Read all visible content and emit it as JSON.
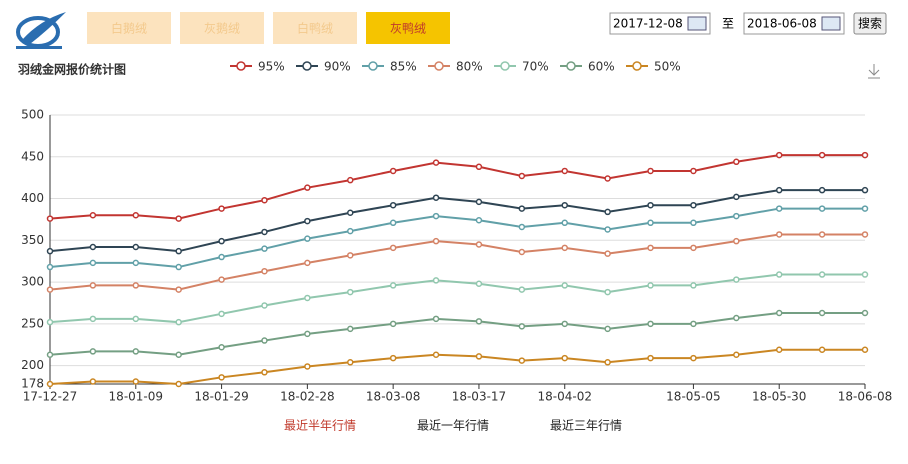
{
  "header": {
    "tabs": [
      "白鹅绒",
      "灰鹅绒",
      "白鸭绒",
      "灰鸭绒"
    ],
    "active_tab": 3,
    "date_from": "2017-12-08",
    "to_label": "至",
    "date_to": "2018-06-08",
    "search": "搜索"
  },
  "chart_data": {
    "type": "line",
    "title": "羽绒金网报价统计图",
    "categories": [
      "17-12-27",
      null,
      "18-01-09",
      null,
      "18-01-29",
      null,
      "18-02-28",
      null,
      "18-03-08",
      null,
      "18-03-17",
      null,
      "18-04-02",
      null,
      null,
      "18-05-05",
      null,
      "18-05-30",
      null,
      "18-06-08"
    ],
    "series": [
      {
        "name": "95%",
        "color": "#c23531",
        "values": [
          376,
          380,
          380,
          376,
          388,
          398,
          413,
          422,
          433,
          443,
          438,
          427,
          433,
          424,
          433,
          433,
          444,
          452,
          452,
          452
        ]
      },
      {
        "name": "90%",
        "color": "#2f4554",
        "values": [
          337,
          342,
          342,
          337,
          349,
          360,
          373,
          383,
          392,
          401,
          396,
          388,
          392,
          384,
          392,
          392,
          402,
          410,
          410,
          410
        ]
      },
      {
        "name": "85%",
        "color": "#61a0a8",
        "values": [
          318,
          323,
          323,
          318,
          330,
          340,
          352,
          361,
          371,
          379,
          374,
          366,
          371,
          363,
          371,
          371,
          379,
          388,
          388,
          388
        ]
      },
      {
        "name": "80%",
        "color": "#d48265",
        "values": [
          291,
          296,
          296,
          291,
          303,
          313,
          323,
          332,
          341,
          349,
          345,
          336,
          341,
          334,
          341,
          341,
          349,
          357,
          357,
          357
        ]
      },
      {
        "name": "70%",
        "color": "#91c7ae",
        "values": [
          252,
          256,
          256,
          252,
          262,
          272,
          281,
          288,
          296,
          302,
          298,
          291,
          296,
          288,
          296,
          296,
          303,
          309,
          309,
          309
        ]
      },
      {
        "name": "60%",
        "color": "#749f83",
        "values": [
          213,
          217,
          217,
          213,
          222,
          230,
          238,
          244,
          250,
          256,
          253,
          247,
          250,
          244,
          250,
          250,
          257,
          263,
          263,
          263
        ]
      },
      {
        "name": "50%",
        "color": "#ca8622",
        "values": [
          178,
          181,
          181,
          178,
          186,
          192,
          199,
          204,
          209,
          213,
          211,
          206,
          209,
          204,
          209,
          209,
          213,
          219,
          219,
          219
        ]
      }
    ],
    "ylim": [
      178,
      500
    ],
    "yticks": [
      178,
      200,
      250,
      300,
      350,
      400,
      450,
      500
    ],
    "grid": true
  },
  "footer_links": [
    "最近半年行情",
    "最近一年行情",
    "最近三年行情"
  ],
  "active_link": 0
}
